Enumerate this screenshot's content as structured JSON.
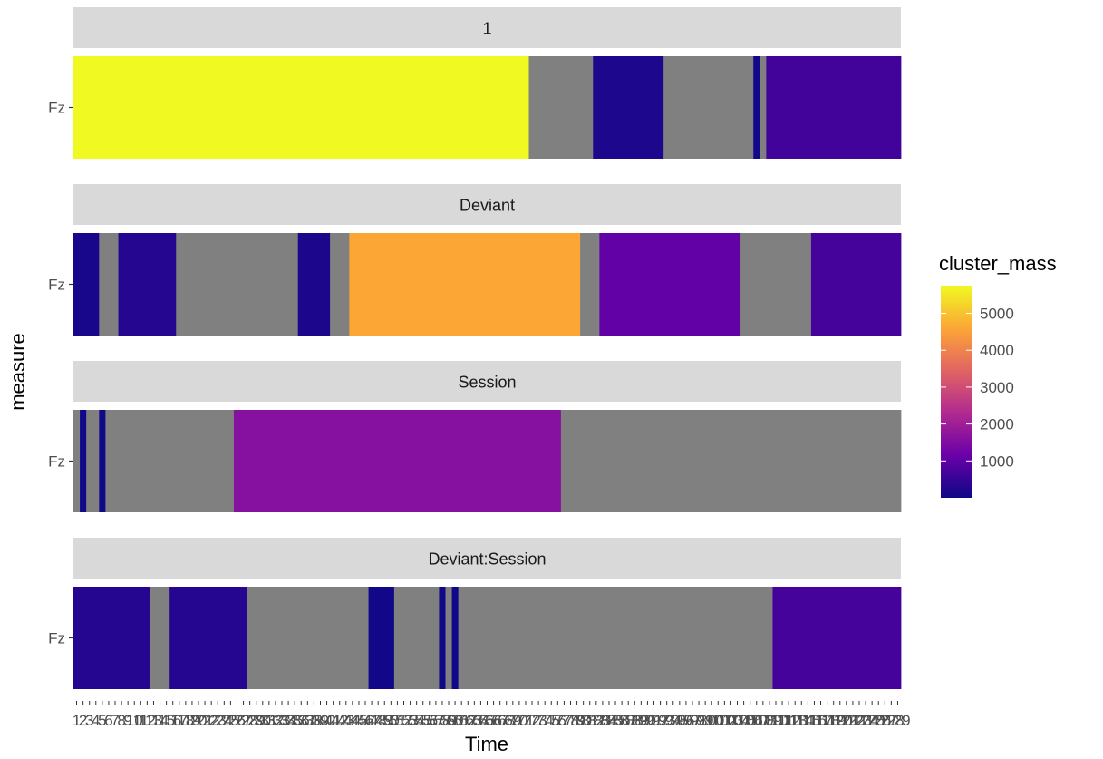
{
  "chart_data": {
    "type": "heatmap",
    "xlabel": "Time",
    "ylabel": "measure",
    "x_range": [
      1,
      129
    ],
    "x_tick_count": 129,
    "x_tick_labels_note": "dense overlapping integer labels 1..129",
    "na_color": "#808080",
    "legend": {
      "title": "cluster_mass",
      "position": "right",
      "breaks": [
        1000,
        2000,
        3000,
        4000,
        5000
      ],
      "limits": [
        0,
        5750
      ],
      "palette": [
        "#0d0887",
        "#6a00a8",
        "#b12a90",
        "#e16462",
        "#fca636",
        "#f0f921"
      ],
      "break_labels": [
        "1000",
        "2000",
        "3000",
        "4000",
        "5000"
      ]
    },
    "panels": [
      {
        "name": "1",
        "row": "Fz",
        "segments": [
          {
            "start": 1,
            "end": 71,
            "value": 5750
          },
          {
            "start": 72,
            "end": 81,
            "value": null
          },
          {
            "start": 82,
            "end": 92,
            "value": 200
          },
          {
            "start": 93,
            "end": 106,
            "value": null
          },
          {
            "start": 107,
            "end": 107,
            "value": 60
          },
          {
            "start": 108,
            "end": 108,
            "value": null
          },
          {
            "start": 109,
            "end": 129,
            "value": 650
          }
        ]
      },
      {
        "name": "Deviant",
        "row": "Fz",
        "segments": [
          {
            "start": 1,
            "end": 4,
            "value": 150
          },
          {
            "start": 5,
            "end": 7,
            "value": null
          },
          {
            "start": 8,
            "end": 16,
            "value": 300
          },
          {
            "start": 17,
            "end": 35,
            "value": null
          },
          {
            "start": 36,
            "end": 40,
            "value": 180
          },
          {
            "start": 41,
            "end": 43,
            "value": null
          },
          {
            "start": 44,
            "end": 79,
            "value": 4600
          },
          {
            "start": 80,
            "end": 82,
            "value": null
          },
          {
            "start": 83,
            "end": 104,
            "value": 1050
          },
          {
            "start": 105,
            "end": 115,
            "value": null
          },
          {
            "start": 116,
            "end": 129,
            "value": 700
          }
        ]
      },
      {
        "name": "Session",
        "row": "Fz",
        "segments": [
          {
            "start": 1,
            "end": 1,
            "value": null
          },
          {
            "start": 2,
            "end": 2,
            "value": 30
          },
          {
            "start": 3,
            "end": 4,
            "value": null
          },
          {
            "start": 5,
            "end": 5,
            "value": 30
          },
          {
            "start": 6,
            "end": 25,
            "value": null
          },
          {
            "start": 26,
            "end": 76,
            "value": 1600
          },
          {
            "start": 77,
            "end": 129,
            "value": null
          }
        ]
      },
      {
        "name": "Deviant:Session",
        "row": "Fz",
        "segments": [
          {
            "start": 1,
            "end": 12,
            "value": 300
          },
          {
            "start": 13,
            "end": 15,
            "value": null
          },
          {
            "start": 16,
            "end": 27,
            "value": 300
          },
          {
            "start": 28,
            "end": 46,
            "value": null
          },
          {
            "start": 47,
            "end": 50,
            "value": 80
          },
          {
            "start": 51,
            "end": 57,
            "value": null
          },
          {
            "start": 58,
            "end": 58,
            "value": 40
          },
          {
            "start": 59,
            "end": 59,
            "value": null
          },
          {
            "start": 60,
            "end": 60,
            "value": 40
          },
          {
            "start": 61,
            "end": 109,
            "value": null
          },
          {
            "start": 110,
            "end": 129,
            "value": 700
          }
        ]
      }
    ]
  }
}
